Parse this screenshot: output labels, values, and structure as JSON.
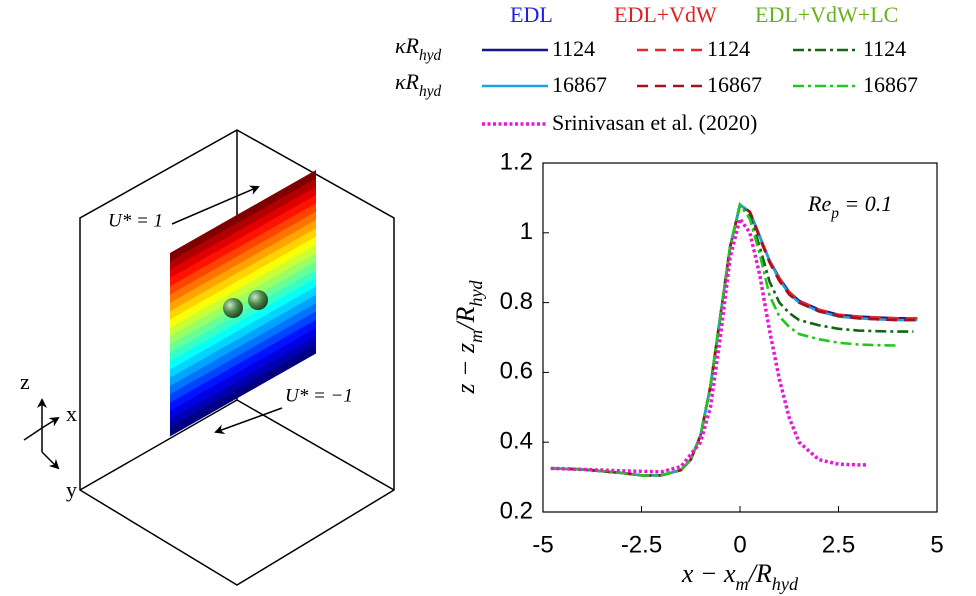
{
  "chart_data": {
    "type": "line",
    "legend": {
      "columns": [
        {
          "name": "EDL",
          "color": "#2020e0"
        },
        {
          "name": "EDL+VdW",
          "color": "#e02020"
        },
        {
          "name": "EDL+VdW+LC",
          "color": "#66b21e"
        }
      ],
      "row_labels": [
        [
          "κR",
          "hyd"
        ],
        [
          "κR",
          "hyd"
        ]
      ]
    },
    "annotation": [
      "Re",
      "p",
      " = 0.1"
    ],
    "x_label": [
      "x − x",
      "m",
      "/R",
      "hyd"
    ],
    "y_label": [
      "z − z",
      "m",
      "/R",
      "hyd"
    ],
    "xlim": [
      -5,
      5
    ],
    "ylim": [
      0.2,
      1.2
    ],
    "xticks": [
      -5,
      -2.5,
      0,
      2.5,
      5
    ],
    "yticks": [
      0.2,
      0.4,
      0.6,
      0.8,
      1,
      1.2
    ],
    "series": [
      {
        "name": "1124",
        "color": "#16168c",
        "dash": "solid",
        "x": [
          -4.8,
          -4,
          -3,
          -2.5,
          -2,
          -1.5,
          -1.25,
          -1,
          -0.75,
          -0.5,
          -0.25,
          0,
          0.25,
          0.5,
          0.75,
          1,
          1.25,
          1.5,
          2,
          2.5,
          3,
          3.5,
          4,
          4.5
        ],
        "values": [
          0.325,
          0.322,
          0.312,
          0.305,
          0.305,
          0.32,
          0.35,
          0.42,
          0.56,
          0.76,
          0.96,
          1.08,
          1.06,
          0.99,
          0.92,
          0.87,
          0.83,
          0.805,
          0.78,
          0.765,
          0.76,
          0.757,
          0.755,
          0.755
        ]
      },
      {
        "name": "16867",
        "color": "#1ea0e0",
        "dash": "solid",
        "x": [
          -4.8,
          -4,
          -3,
          -2.5,
          -2,
          -1.5,
          -1.25,
          -1,
          -0.75,
          -0.5,
          -0.25,
          0,
          0.25,
          0.5,
          0.75,
          1,
          1.25,
          1.5,
          2,
          2.5,
          3,
          3.5,
          4,
          4.5
        ],
        "values": [
          0.325,
          0.322,
          0.312,
          0.305,
          0.305,
          0.32,
          0.35,
          0.42,
          0.56,
          0.76,
          0.96,
          1.08,
          1.06,
          0.99,
          0.92,
          0.865,
          0.825,
          0.8,
          0.775,
          0.76,
          0.755,
          0.752,
          0.75,
          0.75
        ]
      },
      {
        "name": "1124",
        "color": "#e8262d",
        "dash": "dashed",
        "x": [
          -4.8,
          -4,
          -3,
          -2.5,
          -2,
          -1.5,
          -1.25,
          -1,
          -0.75,
          -0.5,
          -0.25,
          0,
          0.25,
          0.5,
          0.75,
          1,
          1.25,
          1.5,
          2,
          2.5,
          3,
          3.5,
          4,
          4.5
        ],
        "values": [
          0.325,
          0.322,
          0.312,
          0.305,
          0.305,
          0.32,
          0.35,
          0.42,
          0.56,
          0.76,
          0.96,
          1.08,
          1.06,
          0.99,
          0.92,
          0.87,
          0.83,
          0.805,
          0.78,
          0.765,
          0.76,
          0.757,
          0.755,
          0.755
        ]
      },
      {
        "name": "16867",
        "color": "#a3121c",
        "dash": "dashed",
        "x": [
          -4.8,
          -4,
          -3,
          -2.5,
          -2,
          -1.5,
          -1.25,
          -1,
          -0.75,
          -0.5,
          -0.25,
          0,
          0.25,
          0.5,
          0.75,
          1,
          1.25,
          1.5,
          2,
          2.5,
          3,
          3.5,
          4,
          4.5
        ],
        "values": [
          0.325,
          0.322,
          0.312,
          0.305,
          0.305,
          0.32,
          0.35,
          0.42,
          0.56,
          0.76,
          0.96,
          1.08,
          1.06,
          0.985,
          0.915,
          0.862,
          0.823,
          0.8,
          0.775,
          0.762,
          0.755,
          0.752,
          0.75,
          0.75
        ]
      },
      {
        "name": "1124",
        "color": "#136413",
        "dash": "dashdot",
        "x": [
          -4.8,
          -4,
          -3,
          -2.5,
          -2,
          -1.5,
          -1.25,
          -1,
          -0.75,
          -0.5,
          -0.25,
          0,
          0.25,
          0.5,
          0.75,
          1,
          1.25,
          1.5,
          2,
          2.5,
          3,
          3.5,
          4,
          4.4
        ],
        "values": [
          0.325,
          0.322,
          0.312,
          0.305,
          0.305,
          0.32,
          0.35,
          0.42,
          0.56,
          0.76,
          0.96,
          1.08,
          1.05,
          0.96,
          0.86,
          0.8,
          0.77,
          0.75,
          0.735,
          0.725,
          0.72,
          0.718,
          0.717,
          0.717
        ]
      },
      {
        "name": "16867",
        "color": "#1ec81e",
        "dash": "dashdot",
        "x": [
          -4.8,
          -4,
          -3,
          -2.5,
          -2,
          -1.5,
          -1.25,
          -1,
          -0.75,
          -0.5,
          -0.25,
          0,
          0.25,
          0.5,
          0.75,
          1,
          1.25,
          1.5,
          2,
          2.5,
          3,
          3.5,
          4
        ],
        "values": [
          0.325,
          0.322,
          0.312,
          0.305,
          0.305,
          0.32,
          0.35,
          0.42,
          0.56,
          0.76,
          0.96,
          1.08,
          1.04,
          0.94,
          0.82,
          0.76,
          0.73,
          0.71,
          0.695,
          0.685,
          0.68,
          0.678,
          0.677
        ]
      },
      {
        "name": "Srinivasan et al. (2020)",
        "color": "#e619d6",
        "dash": "dotted",
        "x": [
          -4.8,
          -4,
          -3,
          -2,
          -1.5,
          -1,
          -0.75,
          -0.5,
          -0.25,
          0,
          0.25,
          0.5,
          0.75,
          1,
          1.25,
          1.5,
          2,
          2.5,
          3,
          3.25
        ],
        "values": [
          0.325,
          0.322,
          0.318,
          0.315,
          0.33,
          0.4,
          0.5,
          0.7,
          0.93,
          1.04,
          1.0,
          0.88,
          0.72,
          0.58,
          0.47,
          0.4,
          0.35,
          0.337,
          0.335,
          0.335
        ]
      }
    ]
  },
  "schematic": {
    "top_velocity": "U* = 1",
    "bottom_velocity": "U* = −1",
    "axis_z": "z",
    "axis_x": "x",
    "axis_y": "y"
  }
}
